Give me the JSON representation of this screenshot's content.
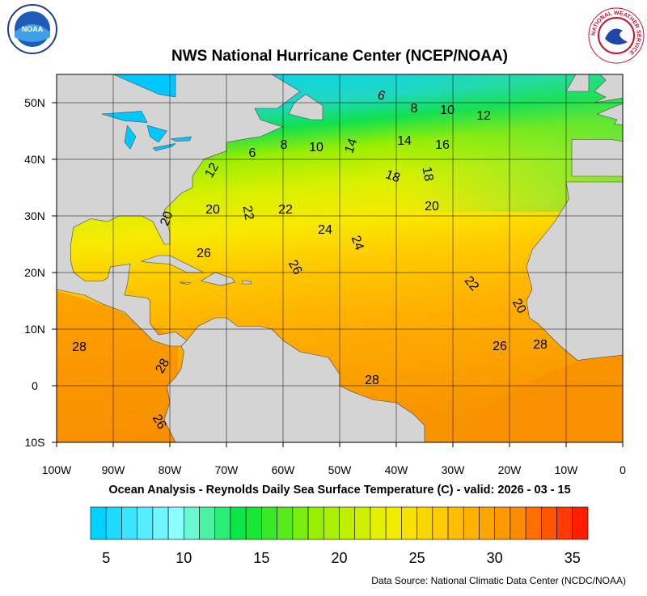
{
  "header": {
    "title": "NWS National Hurricane Center (NCEP/NOAA)",
    "left_logo": "NOAA",
    "right_logo": "NATIONAL WEATHER SERVICE"
  },
  "map": {
    "xlim": [
      -100,
      0
    ],
    "ylim": [
      -10,
      55
    ],
    "xticks": [
      {
        "value": -100,
        "label": "100W"
      },
      {
        "value": -90,
        "label": "90W"
      },
      {
        "value": -80,
        "label": "80W"
      },
      {
        "value": -70,
        "label": "70W"
      },
      {
        "value": -60,
        "label": "60W"
      },
      {
        "value": -50,
        "label": "50W"
      },
      {
        "value": -40,
        "label": "40W"
      },
      {
        "value": -30,
        "label": "30W"
      },
      {
        "value": -20,
        "label": "20W"
      },
      {
        "value": -10,
        "label": "10W"
      },
      0
    ],
    "yticks": [
      {
        "value": 50,
        "label": "50N"
      },
      {
        "value": 40,
        "label": "40N"
      },
      {
        "value": 30,
        "label": "30N"
      },
      {
        "value": 20,
        "label": "20N"
      },
      {
        "value": 10,
        "label": "10N"
      },
      0,
      {
        "value": -10,
        "label": "10S"
      }
    ],
    "contour_labels": [
      6,
      8,
      10,
      12,
      14,
      16,
      18,
      18,
      20,
      20,
      22,
      22,
      24,
      24,
      26,
      26,
      22,
      20,
      26,
      28,
      28,
      28,
      28,
      26,
      6,
      8,
      10,
      14,
      20,
      12
    ]
  },
  "subtitle": "Ocean Analysis - Reynolds Daily Sea Surface Temperature (C) - valid: 2026 - 03 - 15",
  "colorbar": {
    "range": [
      4,
      36
    ],
    "ticks": [
      5,
      10,
      15,
      20,
      25,
      30,
      35
    ]
  },
  "footer": "Data Source: National Climatic Data Center (NCDC/NOAA)"
}
